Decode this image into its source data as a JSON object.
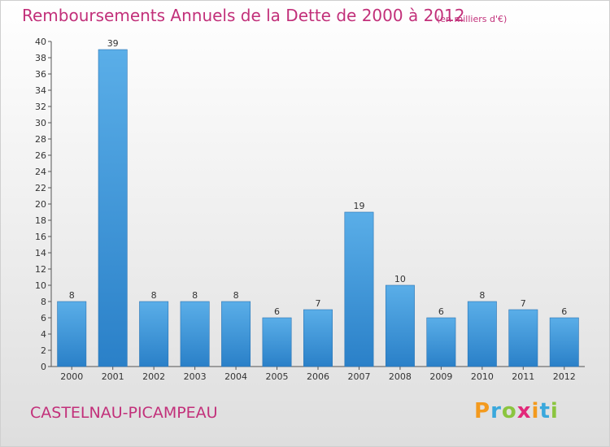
{
  "title": "Remboursements Annuels de la Dette de 2000 à 2012",
  "unit_note": "(en milliers d'€)",
  "commune": "CASTELNAU-PICAMPEAU",
  "brand": {
    "letters": [
      "P",
      "r",
      "o",
      "x",
      "i",
      "t",
      "i"
    ],
    "colors": [
      "#f39a1e",
      "#3aa8dc",
      "#8bc53f",
      "#e2297a",
      "#f39a1e",
      "#3aa8dc",
      "#8bc53f"
    ]
  },
  "colors": {
    "title": "#c2307a",
    "bar_light": "#5aaee8",
    "bar_dark": "#2a80c8"
  },
  "chart_data": {
    "type": "bar",
    "categories": [
      "2000",
      "2001",
      "2002",
      "2003",
      "2004",
      "2005",
      "2006",
      "2007",
      "2008",
      "2009",
      "2010",
      "2011",
      "2012"
    ],
    "values": [
      8,
      39,
      8,
      8,
      8,
      6,
      7,
      19,
      10,
      6,
      8,
      7,
      6
    ],
    "ylim": [
      0,
      40
    ],
    "ytick_step": 2,
    "grid": false,
    "data_labels": true
  }
}
